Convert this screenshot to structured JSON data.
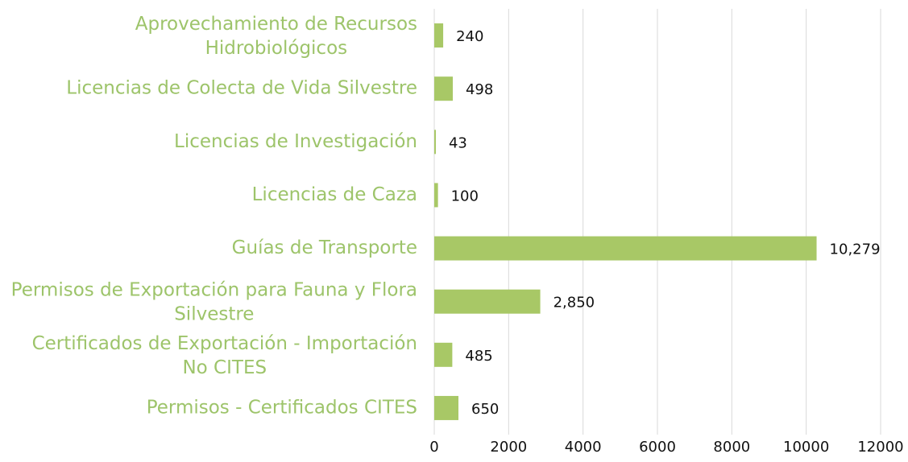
{
  "chart_data": {
    "type": "bar",
    "orientation": "horizontal",
    "categories": [
      "Aprovechamiento de Recursos Hidrobiológicos",
      "Licencias de Colecta de Vida Silvestre",
      "Licencias de Investigación",
      "Licencias de Caza",
      "Guías de Transporte",
      "Permisos de Exportación para Fauna y Flora Silvestre",
      "Certificados de Exportación - Importación No CITES",
      "Permisos - Certificados CITES"
    ],
    "values": [
      240,
      498,
      43,
      100,
      10279,
      2850,
      485,
      650
    ],
    "value_labels": [
      "240",
      "498",
      "43",
      "100",
      "10,279",
      "2,850",
      "485",
      "650"
    ],
    "color": "#a8c866",
    "xlim": [
      0,
      12000
    ],
    "xticks": [
      0,
      2000,
      4000,
      6000,
      8000,
      10000,
      12000
    ],
    "grid": true
  }
}
